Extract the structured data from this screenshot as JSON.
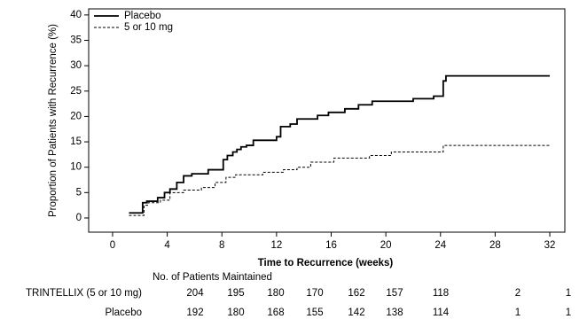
{
  "chart_data": {
    "type": "step",
    "x_label": "Time to Recurrence (weeks)",
    "y_label": "Proportion of Patients with Recurrence (%)",
    "xlim": [
      -1.75,
      33.1
    ],
    "ylim": [
      -2.8,
      41.2
    ],
    "xticks": [
      0,
      4,
      8,
      12,
      16,
      20,
      24,
      28,
      32
    ],
    "yticks": [
      0,
      5,
      10,
      15,
      20,
      25,
      30,
      35,
      40
    ],
    "grid": false,
    "legend": "upper-left",
    "series": [
      {
        "name": "Placebo",
        "color": "#000000",
        "line_style": "solid",
        "x": [
          1.2,
          2.2,
          2.5,
          3.3,
          3.8,
          4.2,
          4.7,
          5.2,
          5.8,
          7.0,
          8.1,
          8.4,
          8.8,
          9.1,
          9.4,
          9.8,
          10.3,
          12.0,
          12.3,
          13.0,
          13.5,
          15.0,
          15.8,
          17.0,
          18.0,
          19.0,
          22.0,
          23.5,
          24.2,
          24.4,
          32.0
        ],
        "values": [
          1,
          3,
          3.3,
          4,
          5,
          5.7,
          7,
          8.3,
          8.7,
          9.5,
          11.5,
          12.3,
          13,
          13.5,
          14,
          14.3,
          15.3,
          16,
          18,
          18.5,
          19.5,
          20.2,
          20.8,
          21.5,
          22.3,
          23,
          23.5,
          24,
          27,
          28,
          28
        ]
      },
      {
        "name": "5 or 10 mg",
        "color": "#000000",
        "line_style": "dashed",
        "x": [
          1.2,
          2.3,
          2.6,
          3.5,
          4.2,
          5.2,
          6.5,
          7.5,
          8.3,
          9.0,
          11.0,
          12.5,
          13.5,
          14.5,
          16.2,
          18.8,
          20.4,
          24.2,
          32.0
        ],
        "values": [
          0.5,
          2.5,
          3,
          3.5,
          5,
          5.5,
          6,
          7,
          8,
          8.5,
          9,
          9.5,
          10,
          11,
          11.8,
          12.3,
          13,
          14.3,
          14.3
        ]
      }
    ],
    "at_risk": {
      "title": "No. of Patients Maintained",
      "rows": [
        {
          "name": "TRINTELLIX (5 or 10 mg)",
          "counts": [
            204,
            195,
            180,
            170,
            162,
            157,
            118,
            2,
            1
          ]
        },
        {
          "name": "Placebo",
          "counts": [
            192,
            180,
            168,
            155,
            142,
            138,
            114,
            1,
            1
          ]
        }
      ]
    }
  }
}
